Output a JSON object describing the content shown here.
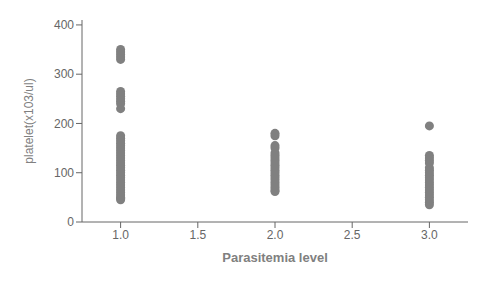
{
  "chart_data": {
    "type": "scatter",
    "title": "",
    "xlabel": "Parasitemia level",
    "ylabel": "platelet(x103/ul)",
    "xlim": [
      0.75,
      3.25
    ],
    "ylim": [
      0,
      410
    ],
    "xticks": [
      {
        "value": 1.0,
        "label": "1.0"
      },
      {
        "value": 1.5,
        "label": "1.5"
      },
      {
        "value": 2.0,
        "label": "2.0"
      },
      {
        "value": 2.5,
        "label": "2.5"
      },
      {
        "value": 3.0,
        "label": "3.0"
      }
    ],
    "yticks": [
      0,
      100,
      200,
      300,
      400
    ],
    "grid": false,
    "marker": "o",
    "series": [
      {
        "color": "#808080",
        "x": [
          1.0,
          1.0,
          1.0,
          1.0,
          1.0,
          1.0,
          1.0,
          1.0,
          1.0,
          1.0,
          1.0,
          1.0,
          1.0,
          1.0,
          1.0,
          1.0,
          1.0,
          1.0,
          1.0,
          1.0,
          1.0,
          1.0,
          1.0,
          1.0,
          1.0,
          1.0,
          1.0,
          1.0,
          1.0,
          1.0,
          1.0,
          1.0,
          1.0,
          1.0,
          1.0,
          1.0,
          1.0,
          1.0,
          1.0,
          1.0
        ],
        "values": [
          350,
          345,
          340,
          335,
          330,
          265,
          260,
          255,
          250,
          245,
          240,
          230,
          175,
          170,
          165,
          160,
          155,
          150,
          145,
          140,
          135,
          130,
          125,
          120,
          115,
          110,
          105,
          100,
          95,
          90,
          85,
          80,
          75,
          70,
          65,
          60,
          55,
          50,
          48,
          45
        ]
      },
      {
        "color": "#808080",
        "x": [
          2.0,
          2.0,
          2.0,
          2.0,
          2.0,
          2.0,
          2.0,
          2.0,
          2.0,
          2.0,
          2.0,
          2.0,
          2.0,
          2.0,
          2.0,
          2.0,
          2.0,
          2.0,
          2.0,
          2.0,
          2.0
        ],
        "values": [
          180,
          175,
          155,
          150,
          140,
          135,
          130,
          125,
          120,
          115,
          110,
          105,
          100,
          95,
          90,
          85,
          80,
          75,
          70,
          65,
          62
        ]
      },
      {
        "color": "#808080",
        "x": [
          3.0,
          3.0,
          3.0,
          3.0,
          3.0,
          3.0,
          3.0,
          3.0,
          3.0,
          3.0,
          3.0,
          3.0,
          3.0,
          3.0,
          3.0,
          3.0,
          3.0,
          3.0,
          3.0,
          3.0,
          3.0
        ],
        "values": [
          195,
          135,
          130,
          125,
          120,
          110,
          105,
          100,
          95,
          90,
          85,
          80,
          75,
          70,
          65,
          60,
          55,
          50,
          45,
          40,
          35
        ]
      }
    ]
  }
}
